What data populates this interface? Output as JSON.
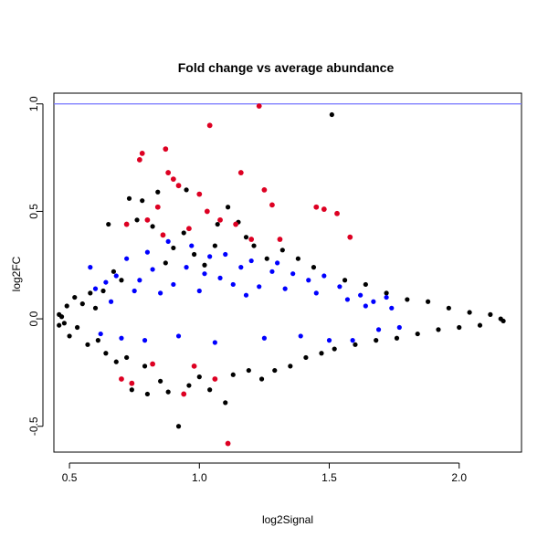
{
  "chart_data": {
    "type": "scatter",
    "title": "Fold change vs average abundance",
    "xlabel": "log2Signal",
    "ylabel": "log2FC",
    "xlim": [
      0.44,
      2.24
    ],
    "ylim": [
      -0.62,
      1.05
    ],
    "x_ticks": [
      0.5,
      1.0,
      1.5,
      2.0
    ],
    "x_tick_labels": [
      "0.5",
      "1.0",
      "1.5",
      "2.0"
    ],
    "y_ticks": [
      -0.5,
      0.0,
      0.5,
      1.0
    ],
    "y_tick_labels": [
      "-0.5",
      "0.0",
      "0.5",
      "1.0"
    ],
    "grid": false,
    "legend": "none",
    "reference_line": {
      "orientation": "horizontal",
      "y": 1.0,
      "color": "#7777ff"
    },
    "colors": {
      "black": "#000000",
      "blue": "#0000ff",
      "red": "#dd0022"
    },
    "series": [
      {
        "color": "#000000",
        "points": [
          [
            0.46,
            0.02
          ],
          [
            0.46,
            -0.03
          ],
          [
            0.47,
            0.01
          ],
          [
            0.48,
            -0.02
          ],
          [
            0.49,
            0.06
          ],
          [
            0.5,
            -0.08
          ],
          [
            0.52,
            0.1
          ],
          [
            0.53,
            -0.04
          ],
          [
            0.55,
            0.07
          ],
          [
            0.57,
            -0.12
          ],
          [
            0.58,
            0.12
          ],
          [
            0.6,
            0.05
          ],
          [
            0.61,
            -0.1
          ],
          [
            0.63,
            0.13
          ],
          [
            0.64,
            -0.16
          ],
          [
            0.65,
            0.44
          ],
          [
            0.67,
            0.22
          ],
          [
            0.68,
            -0.2
          ],
          [
            0.7,
            0.18
          ],
          [
            0.72,
            -0.18
          ],
          [
            0.73,
            0.56
          ],
          [
            0.74,
            -0.33
          ],
          [
            0.76,
            0.46
          ],
          [
            0.78,
            0.55
          ],
          [
            0.79,
            -0.22
          ],
          [
            0.8,
            -0.35
          ],
          [
            0.82,
            0.43
          ],
          [
            0.84,
            0.59
          ],
          [
            0.85,
            -0.29
          ],
          [
            0.87,
            0.26
          ],
          [
            0.88,
            -0.34
          ],
          [
            0.9,
            0.33
          ],
          [
            0.92,
            -0.5
          ],
          [
            0.94,
            0.4
          ],
          [
            0.95,
            0.6
          ],
          [
            0.96,
            -0.31
          ],
          [
            0.98,
            0.3
          ],
          [
            1.0,
            -0.27
          ],
          [
            1.02,
            0.25
          ],
          [
            1.04,
            -0.33
          ],
          [
            1.06,
            0.34
          ],
          [
            1.07,
            0.44
          ],
          [
            1.1,
            -0.39
          ],
          [
            1.11,
            0.52
          ],
          [
            1.13,
            -0.26
          ],
          [
            1.15,
            0.45
          ],
          [
            1.18,
            0.38
          ],
          [
            1.19,
            -0.24
          ],
          [
            1.21,
            0.34
          ],
          [
            1.24,
            -0.28
          ],
          [
            1.26,
            0.28
          ],
          [
            1.29,
            -0.24
          ],
          [
            1.32,
            0.32
          ],
          [
            1.35,
            -0.22
          ],
          [
            1.38,
            0.28
          ],
          [
            1.41,
            -0.18
          ],
          [
            1.44,
            0.24
          ],
          [
            1.47,
            -0.16
          ],
          [
            1.51,
            0.95
          ],
          [
            1.52,
            -0.14
          ],
          [
            1.56,
            0.18
          ],
          [
            1.6,
            -0.12
          ],
          [
            1.64,
            0.16
          ],
          [
            1.68,
            -0.1
          ],
          [
            1.72,
            0.12
          ],
          [
            1.76,
            -0.09
          ],
          [
            1.8,
            0.09
          ],
          [
            1.84,
            -0.07
          ],
          [
            1.88,
            0.08
          ],
          [
            1.92,
            -0.05
          ],
          [
            1.96,
            0.05
          ],
          [
            2.0,
            -0.04
          ],
          [
            2.04,
            0.03
          ],
          [
            2.08,
            -0.03
          ],
          [
            2.12,
            0.02
          ],
          [
            2.16,
            0.0
          ],
          [
            2.17,
            -0.01
          ]
        ]
      },
      {
        "color": "#0000ff",
        "points": [
          [
            0.58,
            0.24
          ],
          [
            0.6,
            0.14
          ],
          [
            0.62,
            -0.07
          ],
          [
            0.64,
            0.17
          ],
          [
            0.66,
            0.08
          ],
          [
            0.68,
            0.2
          ],
          [
            0.7,
            -0.09
          ],
          [
            0.72,
            0.28
          ],
          [
            0.75,
            0.13
          ],
          [
            0.77,
            0.18
          ],
          [
            0.79,
            -0.1
          ],
          [
            0.8,
            0.31
          ],
          [
            0.82,
            0.23
          ],
          [
            0.85,
            0.12
          ],
          [
            0.88,
            0.36
          ],
          [
            0.9,
            0.16
          ],
          [
            0.92,
            -0.08
          ],
          [
            0.95,
            0.24
          ],
          [
            0.97,
            0.34
          ],
          [
            1.0,
            0.13
          ],
          [
            1.02,
            0.21
          ],
          [
            1.04,
            0.29
          ],
          [
            1.06,
            -0.11
          ],
          [
            1.08,
            0.19
          ],
          [
            1.1,
            0.3
          ],
          [
            1.13,
            0.16
          ],
          [
            1.16,
            0.24
          ],
          [
            1.18,
            0.11
          ],
          [
            1.2,
            0.27
          ],
          [
            1.23,
            0.15
          ],
          [
            1.25,
            -0.09
          ],
          [
            1.28,
            0.22
          ],
          [
            1.3,
            0.26
          ],
          [
            1.33,
            0.14
          ],
          [
            1.36,
            0.21
          ],
          [
            1.39,
            -0.08
          ],
          [
            1.42,
            0.18
          ],
          [
            1.45,
            0.12
          ],
          [
            1.48,
            0.2
          ],
          [
            1.5,
            -0.1
          ],
          [
            1.54,
            0.15
          ],
          [
            1.57,
            0.09
          ],
          [
            1.59,
            -0.1
          ],
          [
            1.62,
            0.11
          ],
          [
            1.64,
            0.06
          ],
          [
            1.67,
            0.08
          ],
          [
            1.69,
            -0.05
          ],
          [
            1.72,
            0.1
          ],
          [
            1.74,
            0.05
          ],
          [
            1.77,
            -0.04
          ]
        ]
      },
      {
        "color": "#dd0022",
        "points": [
          [
            0.7,
            -0.28
          ],
          [
            0.72,
            0.44
          ],
          [
            0.74,
            -0.3
          ],
          [
            0.77,
            0.74
          ],
          [
            0.78,
            0.77
          ],
          [
            0.8,
            0.46
          ],
          [
            0.82,
            -0.21
          ],
          [
            0.84,
            0.52
          ],
          [
            0.86,
            0.39
          ],
          [
            0.87,
            0.79
          ],
          [
            0.88,
            0.68
          ],
          [
            0.9,
            0.65
          ],
          [
            0.92,
            0.62
          ],
          [
            0.94,
            -0.35
          ],
          [
            0.96,
            0.42
          ],
          [
            0.98,
            -0.22
          ],
          [
            1.0,
            0.58
          ],
          [
            1.03,
            0.5
          ],
          [
            1.04,
            0.9
          ],
          [
            1.06,
            -0.28
          ],
          [
            1.08,
            0.46
          ],
          [
            1.11,
            -0.58
          ],
          [
            1.14,
            0.44
          ],
          [
            1.16,
            0.68
          ],
          [
            1.2,
            0.37
          ],
          [
            1.23,
            0.99
          ],
          [
            1.25,
            0.6
          ],
          [
            1.28,
            0.53
          ],
          [
            1.31,
            0.37
          ],
          [
            1.45,
            0.52
          ],
          [
            1.48,
            0.51
          ],
          [
            1.53,
            0.49
          ],
          [
            1.58,
            0.38
          ]
        ]
      }
    ]
  }
}
